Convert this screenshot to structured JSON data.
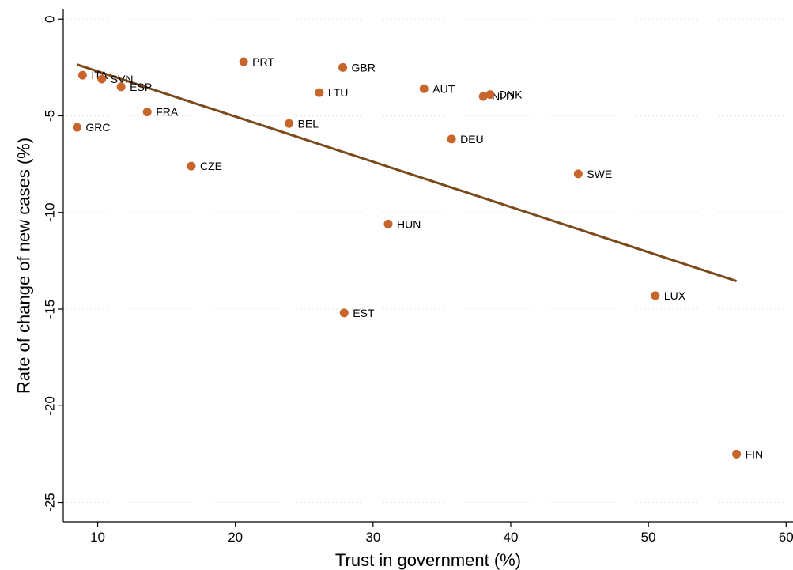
{
  "chart_data": {
    "type": "scatter",
    "title": "",
    "xlabel": "Trust in government (%)",
    "ylabel": "Rate of change of new cases (%)",
    "xlim": [
      7.5,
      60.5
    ],
    "ylim": [
      -26,
      0.5
    ],
    "xticks": [
      10,
      20,
      30,
      40,
      50,
      60
    ],
    "yticks": [
      0,
      -5,
      -10,
      -15,
      -20,
      -25
    ],
    "grid": true,
    "colors": {
      "point": "#c8652a",
      "fit_line": "#7a4a1c"
    },
    "points": [
      {
        "label": "ITA",
        "x": 8.9,
        "y": -2.9
      },
      {
        "label": "SVN",
        "x": 10.3,
        "y": -3.1
      },
      {
        "label": "ESP",
        "x": 11.7,
        "y": -3.5
      },
      {
        "label": "GRC",
        "x": 8.5,
        "y": -5.6
      },
      {
        "label": "FRA",
        "x": 13.6,
        "y": -4.8
      },
      {
        "label": "CZE",
        "x": 16.8,
        "y": -7.6
      },
      {
        "label": "PRT",
        "x": 20.6,
        "y": -2.2
      },
      {
        "label": "BEL",
        "x": 23.9,
        "y": -5.4
      },
      {
        "label": "LTU",
        "x": 26.1,
        "y": -3.8
      },
      {
        "label": "GBR",
        "x": 27.8,
        "y": -2.5
      },
      {
        "label": "EST",
        "x": 27.9,
        "y": -15.2
      },
      {
        "label": "HUN",
        "x": 31.1,
        "y": -10.6
      },
      {
        "label": "AUT",
        "x": 33.7,
        "y": -3.6
      },
      {
        "label": "DEU",
        "x": 35.7,
        "y": -6.2
      },
      {
        "label": "NLD",
        "x": 38.0,
        "y": -4.0
      },
      {
        "label": "DNK",
        "x": 38.5,
        "y": -3.9
      },
      {
        "label": "SWE",
        "x": 44.9,
        "y": -8.0
      },
      {
        "label": "LUX",
        "x": 50.5,
        "y": -14.3
      },
      {
        "label": "FIN",
        "x": 56.4,
        "y": -22.5
      }
    ],
    "fit_line": {
      "x": [
        8.5,
        56.4
      ],
      "y": [
        -2.35,
        -13.55
      ]
    }
  }
}
